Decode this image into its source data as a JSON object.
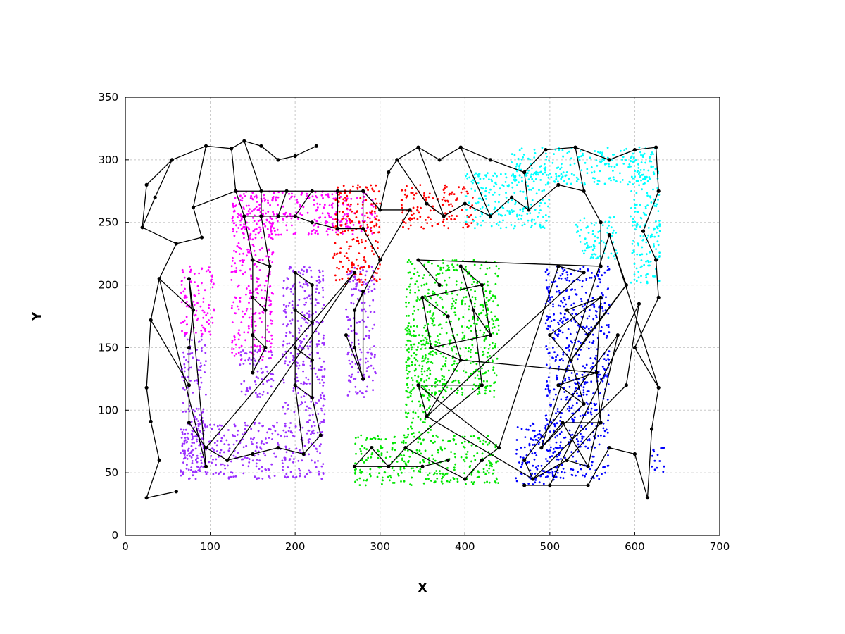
{
  "chart_data": {
    "type": "scatter",
    "title": "",
    "xlabel": "X",
    "ylabel": "Y",
    "xlim": [
      0,
      700
    ],
    "ylim": [
      0,
      350
    ],
    "x_ticks": [
      "0",
      "100",
      "200",
      "300",
      "400",
      "500",
      "600",
      "700"
    ],
    "y_ticks": [
      "0",
      "50",
      "100",
      "150",
      "200",
      "250",
      "300",
      "350"
    ],
    "grid": true,
    "legend": "none",
    "series_colors": {
      "magenta": "#ff00ff",
      "purple": "#9b30ff",
      "red": "#ff0000",
      "green": "#00e600",
      "cyan": "#00ffff",
      "blue": "#0000ff"
    },
    "clusters": [
      {
        "color": "magenta",
        "regions": [
          [
            125,
            295,
            240,
            275
          ],
          [
            125,
            175,
            140,
            275
          ],
          [
            65,
            105,
            160,
            215
          ]
        ]
      },
      {
        "color": "purple",
        "regions": [
          [
            65,
            95,
            50,
            160
          ],
          [
            65,
            235,
            45,
            90
          ],
          [
            185,
            235,
            90,
            215
          ],
          [
            135,
            175,
            110,
            150
          ],
          [
            260,
            295,
            110,
            215
          ]
        ]
      },
      {
        "color": "red",
        "regions": [
          [
            245,
            300,
            200,
            280
          ],
          [
            325,
            410,
            245,
            280
          ]
        ]
      },
      {
        "color": "green",
        "regions": [
          [
            330,
            440,
            110,
            220
          ],
          [
            270,
            440,
            40,
            80
          ],
          [
            330,
            360,
            80,
            160
          ]
        ]
      },
      {
        "color": "cyan",
        "regions": [
          [
            400,
            500,
            245,
            290
          ],
          [
            455,
            620,
            280,
            310
          ],
          [
            530,
            580,
            220,
            255
          ],
          [
            595,
            630,
            200,
            310
          ]
        ]
      },
      {
        "color": "blue",
        "regions": [
          [
            495,
            570,
            45,
            215
          ],
          [
            460,
            510,
            40,
            90
          ],
          [
            620,
            635,
            50,
            70
          ]
        ]
      }
    ],
    "graph_nodes": [
      [
        95,
        311
      ],
      [
        125,
        309
      ],
      [
        140,
        315
      ],
      [
        160,
        311
      ],
      [
        180,
        300
      ],
      [
        200,
        303
      ],
      [
        225,
        311
      ],
      [
        55,
        300
      ],
      [
        25,
        280
      ],
      [
        20,
        246
      ],
      [
        35,
        270
      ],
      [
        80,
        262
      ],
      [
        90,
        238
      ],
      [
        60,
        233
      ],
      [
        40,
        205
      ],
      [
        30,
        172
      ],
      [
        25,
        118
      ],
      [
        30,
        91
      ],
      [
        40,
        60
      ],
      [
        25,
        30
      ],
      [
        60,
        35
      ],
      [
        130,
        275
      ],
      [
        160,
        275
      ],
      [
        190,
        275
      ],
      [
        220,
        275
      ],
      [
        250,
        275
      ],
      [
        280,
        275
      ],
      [
        300,
        260
      ],
      [
        310,
        290
      ],
      [
        320,
        300
      ],
      [
        345,
        310
      ],
      [
        370,
        300
      ],
      [
        395,
        310
      ],
      [
        430,
        300
      ],
      [
        470,
        290
      ],
      [
        495,
        308
      ],
      [
        530,
        310
      ],
      [
        570,
        300
      ],
      [
        600,
        308
      ],
      [
        625,
        310
      ],
      [
        628,
        275
      ],
      [
        610,
        243
      ],
      [
        625,
        220
      ],
      [
        628,
        190
      ],
      [
        600,
        150
      ],
      [
        628,
        118
      ],
      [
        620,
        85
      ],
      [
        615,
        30
      ],
      [
        600,
        65
      ],
      [
        570,
        70
      ],
      [
        545,
        40
      ],
      [
        500,
        40
      ],
      [
        470,
        40
      ],
      [
        140,
        255
      ],
      [
        160,
        255
      ],
      [
        180,
        255
      ],
      [
        200,
        255
      ],
      [
        220,
        250
      ],
      [
        250,
        245
      ],
      [
        280,
        245
      ],
      [
        150,
        220
      ],
      [
        150,
        190
      ],
      [
        150,
        160
      ],
      [
        150,
        130
      ],
      [
        170,
        215
      ],
      [
        165,
        180
      ],
      [
        165,
        150
      ],
      [
        200,
        210
      ],
      [
        200,
        180
      ],
      [
        200,
        150
      ],
      [
        200,
        120
      ],
      [
        220,
        200
      ],
      [
        220,
        170
      ],
      [
        220,
        140
      ],
      [
        220,
        110
      ],
      [
        230,
        80
      ],
      [
        210,
        65
      ],
      [
        180,
        70
      ],
      [
        150,
        65
      ],
      [
        120,
        60
      ],
      [
        95,
        70
      ],
      [
        75,
        90
      ],
      [
        75,
        120
      ],
      [
        75,
        150
      ],
      [
        80,
        180
      ],
      [
        75,
        205
      ],
      [
        95,
        55
      ],
      [
        270,
        210
      ],
      [
        270,
        180
      ],
      [
        270,
        150
      ],
      [
        280,
        125
      ],
      [
        260,
        160
      ],
      [
        280,
        195
      ],
      [
        300,
        220
      ],
      [
        335,
        260
      ],
      [
        355,
        265
      ],
      [
        375,
        255
      ],
      [
        400,
        265
      ],
      [
        430,
        255
      ],
      [
        455,
        270
      ],
      [
        475,
        260
      ],
      [
        510,
        280
      ],
      [
        540,
        275
      ],
      [
        560,
        250
      ],
      [
        560,
        215
      ],
      [
        345,
        220
      ],
      [
        370,
        200
      ],
      [
        395,
        215
      ],
      [
        420,
        200
      ],
      [
        350,
        190
      ],
      [
        380,
        175
      ],
      [
        410,
        180
      ],
      [
        430,
        160
      ],
      [
        360,
        150
      ],
      [
        395,
        140
      ],
      [
        420,
        120
      ],
      [
        345,
        120
      ],
      [
        355,
        95
      ],
      [
        330,
        70
      ],
      [
        310,
        55
      ],
      [
        290,
        70
      ],
      [
        270,
        55
      ],
      [
        350,
        55
      ],
      [
        380,
        60
      ],
      [
        400,
        45
      ],
      [
        420,
        60
      ],
      [
        440,
        70
      ],
      [
        510,
        215
      ],
      [
        540,
        210
      ],
      [
        560,
        190
      ],
      [
        520,
        180
      ],
      [
        545,
        160
      ],
      [
        500,
        160
      ],
      [
        525,
        140
      ],
      [
        555,
        130
      ],
      [
        510,
        120
      ],
      [
        540,
        105
      ],
      [
        560,
        90
      ],
      [
        515,
        90
      ],
      [
        490,
        70
      ],
      [
        520,
        60
      ],
      [
        545,
        55
      ],
      [
        480,
        45
      ],
      [
        470,
        60
      ],
      [
        580,
        160
      ],
      [
        590,
        120
      ],
      [
        605,
        185
      ],
      [
        590,
        200
      ],
      [
        570,
        240
      ]
    ],
    "graph_edges": [
      [
        0,
        1
      ],
      [
        1,
        2
      ],
      [
        2,
        3
      ],
      [
        3,
        4
      ],
      [
        4,
        5
      ],
      [
        5,
        6
      ],
      [
        0,
        11
      ],
      [
        7,
        8
      ],
      [
        8,
        9
      ],
      [
        9,
        10
      ],
      [
        10,
        7
      ],
      [
        11,
        12
      ],
      [
        12,
        13
      ],
      [
        13,
        14
      ],
      [
        14,
        15
      ],
      [
        15,
        16
      ],
      [
        16,
        17
      ],
      [
        17,
        18
      ],
      [
        18,
        19
      ],
      [
        19,
        20
      ],
      [
        9,
        13
      ],
      [
        0,
        7
      ],
      [
        11,
        21
      ],
      [
        21,
        22
      ],
      [
        22,
        23
      ],
      [
        23,
        24
      ],
      [
        24,
        25
      ],
      [
        25,
        26
      ],
      [
        26,
        27
      ],
      [
        27,
        28
      ],
      [
        28,
        29
      ],
      [
        29,
        30
      ],
      [
        30,
        31
      ],
      [
        31,
        32
      ],
      [
        32,
        33
      ],
      [
        33,
        34
      ],
      [
        34,
        35
      ],
      [
        35,
        36
      ],
      [
        36,
        37
      ],
      [
        37,
        38
      ],
      [
        38,
        39
      ],
      [
        39,
        40
      ],
      [
        40,
        41
      ],
      [
        41,
        42
      ],
      [
        42,
        43
      ],
      [
        43,
        44
      ],
      [
        44,
        45
      ],
      [
        45,
        46
      ],
      [
        46,
        47
      ],
      [
        47,
        48
      ],
      [
        48,
        49
      ],
      [
        49,
        50
      ],
      [
        50,
        51
      ],
      [
        51,
        52
      ],
      [
        1,
        21
      ],
      [
        2,
        22
      ],
      [
        53,
        54
      ],
      [
        54,
        55
      ],
      [
        55,
        56
      ],
      [
        56,
        57
      ],
      [
        57,
        58
      ],
      [
        58,
        59
      ],
      [
        21,
        53
      ],
      [
        22,
        54
      ],
      [
        23,
        55
      ],
      [
        24,
        56
      ],
      [
        25,
        58
      ],
      [
        26,
        59
      ],
      [
        53,
        60
      ],
      [
        60,
        61
      ],
      [
        61,
        62
      ],
      [
        62,
        63
      ],
      [
        54,
        64
      ],
      [
        64,
        65
      ],
      [
        65,
        66
      ],
      [
        60,
        64
      ],
      [
        61,
        65
      ],
      [
        62,
        66
      ],
      [
        63,
        66
      ],
      [
        67,
        68
      ],
      [
        68,
        69
      ],
      [
        69,
        70
      ],
      [
        71,
        72
      ],
      [
        72,
        73
      ],
      [
        73,
        74
      ],
      [
        67,
        71
      ],
      [
        68,
        72
      ],
      [
        69,
        73
      ],
      [
        70,
        74
      ],
      [
        74,
        75
      ],
      [
        70,
        76
      ],
      [
        75,
        76
      ],
      [
        76,
        77
      ],
      [
        77,
        78
      ],
      [
        78,
        79
      ],
      [
        79,
        80
      ],
      [
        80,
        81
      ],
      [
        81,
        82
      ],
      [
        82,
        83
      ],
      [
        83,
        84
      ],
      [
        84,
        85
      ],
      [
        85,
        86
      ],
      [
        86,
        14
      ],
      [
        80,
        87
      ],
      [
        87,
        79
      ],
      [
        82,
        15
      ],
      [
        84,
        14
      ],
      [
        88,
        89
      ],
      [
        89,
        90
      ],
      [
        90,
        91
      ],
      [
        88,
        93
      ],
      [
        93,
        94
      ],
      [
        92,
        90
      ],
      [
        59,
        93
      ],
      [
        94,
        27
      ],
      [
        88,
        92
      ],
      [
        95,
        96
      ],
      [
        96,
        97
      ],
      [
        97,
        98
      ],
      [
        98,
        99
      ],
      [
        99,
        100
      ],
      [
        100,
        101
      ],
      [
        101,
        102
      ],
      [
        102,
        103
      ],
      [
        103,
        104
      ],
      [
        104,
        105
      ],
      [
        105,
        106
      ],
      [
        95,
        29
      ],
      [
        96,
        30
      ],
      [
        98,
        32
      ],
      [
        100,
        34
      ],
      [
        102,
        36
      ],
      [
        107,
        108
      ],
      [
        108,
        109
      ],
      [
        109,
        110
      ],
      [
        107,
        111
      ],
      [
        111,
        112
      ],
      [
        112,
        113
      ],
      [
        113,
        114
      ],
      [
        108,
        112
      ],
      [
        109,
        113
      ],
      [
        111,
        115
      ],
      [
        115,
        116
      ],
      [
        116,
        117
      ],
      [
        117,
        114
      ],
      [
        115,
        118
      ],
      [
        118,
        119
      ],
      [
        119,
        120
      ],
      [
        120,
        121
      ],
      [
        121,
        122
      ],
      [
        122,
        123
      ],
      [
        118,
        124
      ],
      [
        124,
        125
      ],
      [
        125,
        126
      ],
      [
        126,
        127
      ],
      [
        127,
        128
      ],
      [
        116,
        126
      ],
      [
        117,
        128
      ],
      [
        110,
        114
      ],
      [
        129,
        130
      ],
      [
        130,
        131
      ],
      [
        129,
        132
      ],
      [
        132,
        133
      ],
      [
        133,
        131
      ],
      [
        129,
        134
      ],
      [
        134,
        135
      ],
      [
        135,
        136
      ],
      [
        136,
        133
      ],
      [
        134,
        137
      ],
      [
        137,
        138
      ],
      [
        138,
        139
      ],
      [
        139,
        136
      ],
      [
        137,
        140
      ],
      [
        140,
        141
      ],
      [
        141,
        138
      ],
      [
        140,
        142
      ],
      [
        142,
        143
      ],
      [
        143,
        144
      ],
      [
        144,
        141
      ],
      [
        142,
        145
      ],
      [
        145,
        146
      ],
      [
        133,
        147
      ],
      [
        147,
        148
      ],
      [
        148,
        45
      ],
      [
        131,
        149
      ],
      [
        149,
        150
      ],
      [
        150,
        43
      ],
      [
        130,
        151
      ],
      [
        151,
        106
      ],
      [
        105,
        151
      ],
      [
        131,
        147
      ],
      [
        146,
        51
      ],
      [
        139,
        148
      ],
      [
        114,
        134
      ],
      [
        117,
        142
      ]
    ]
  }
}
